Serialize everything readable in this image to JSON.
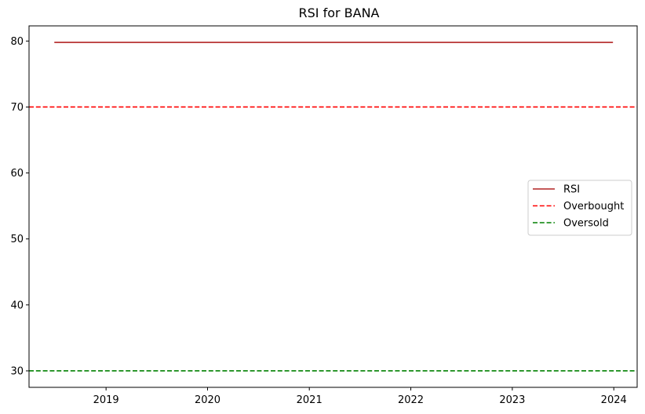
{
  "chart_data": {
    "type": "line",
    "title": "RSI for BANA",
    "xlabel": "",
    "ylabel": "",
    "x_ticks": [
      "2019",
      "2020",
      "2021",
      "2022",
      "2023",
      "2024"
    ],
    "x_tick_dates": [
      "2019-01-01",
      "2020-01-01",
      "2021-01-01",
      "2022-01-01",
      "2023-01-01",
      "2024-01-01"
    ],
    "xlim": [
      "2018-03-30",
      "2024-03-25"
    ],
    "y_ticks": [
      30,
      40,
      50,
      60,
      70,
      80
    ],
    "ylim": [
      27.5,
      82.3
    ],
    "grid": false,
    "legend_position": "center-right",
    "series": [
      {
        "name": "RSI",
        "style": "solid",
        "color": "#b22222",
        "points": [
          {
            "x": "2018-06-29",
            "y": 79.8
          },
          {
            "x": "2023-12-29",
            "y": 79.8
          }
        ]
      }
    ],
    "hlines": [
      {
        "name": "Overbought",
        "y": 70,
        "style": "dashed",
        "color": "#ff0000"
      },
      {
        "name": "Oversold",
        "y": 30,
        "style": "dashed",
        "color": "#008000"
      }
    ]
  }
}
